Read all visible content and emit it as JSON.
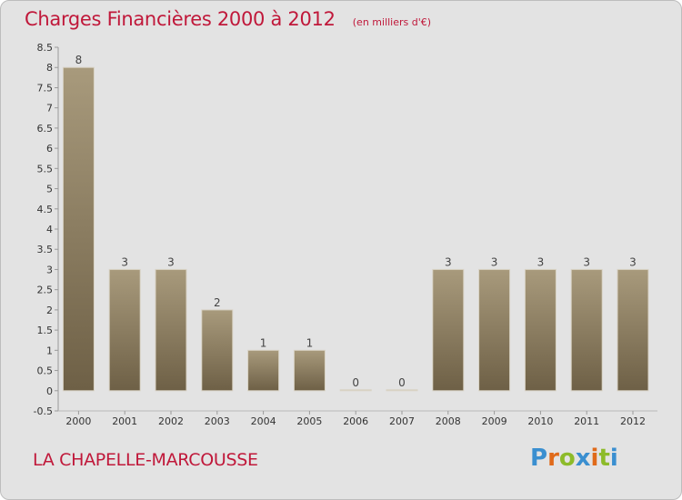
{
  "header": {
    "title": "Charges Financières 2000 à 2012",
    "unit": "(en milliers d'€)"
  },
  "footer": {
    "commune": "LA CHAPELLE-MARCOUSSE",
    "brand": "Proxiti"
  },
  "colors": {
    "title": "#c0183a",
    "bar_top": "#a89a7c",
    "bar_bottom": "#6e6046",
    "background": "#e3e3e3",
    "brand_letters": [
      "#3a8fd0",
      "#e06a1a",
      "#8dbb2a",
      "#3a8fd0",
      "#e06a1a",
      "#8dbb2a",
      "#3a8fd0"
    ]
  },
  "chart_data": {
    "type": "bar",
    "categories": [
      "2000",
      "2001",
      "2002",
      "2003",
      "2004",
      "2005",
      "2006",
      "2007",
      "2008",
      "2009",
      "2010",
      "2011",
      "2012"
    ],
    "values": [
      8,
      3,
      3,
      2,
      1,
      1,
      0,
      0,
      3,
      3,
      3,
      3,
      3
    ],
    "data_labels": [
      "8",
      "3",
      "3",
      "2",
      "1",
      "1",
      "0",
      "0",
      "3",
      "3",
      "3",
      "3",
      "3"
    ],
    "ylim": [
      -0.5,
      8.5
    ],
    "yticks": [
      "-0.5",
      "0",
      "0.5",
      "1",
      "1.5",
      "2",
      "2.5",
      "3",
      "3.5",
      "4",
      "4.5",
      "5",
      "5.5",
      "6",
      "6.5",
      "7",
      "7.5",
      "8",
      "8.5"
    ],
    "grid": false,
    "legend": "none"
  }
}
